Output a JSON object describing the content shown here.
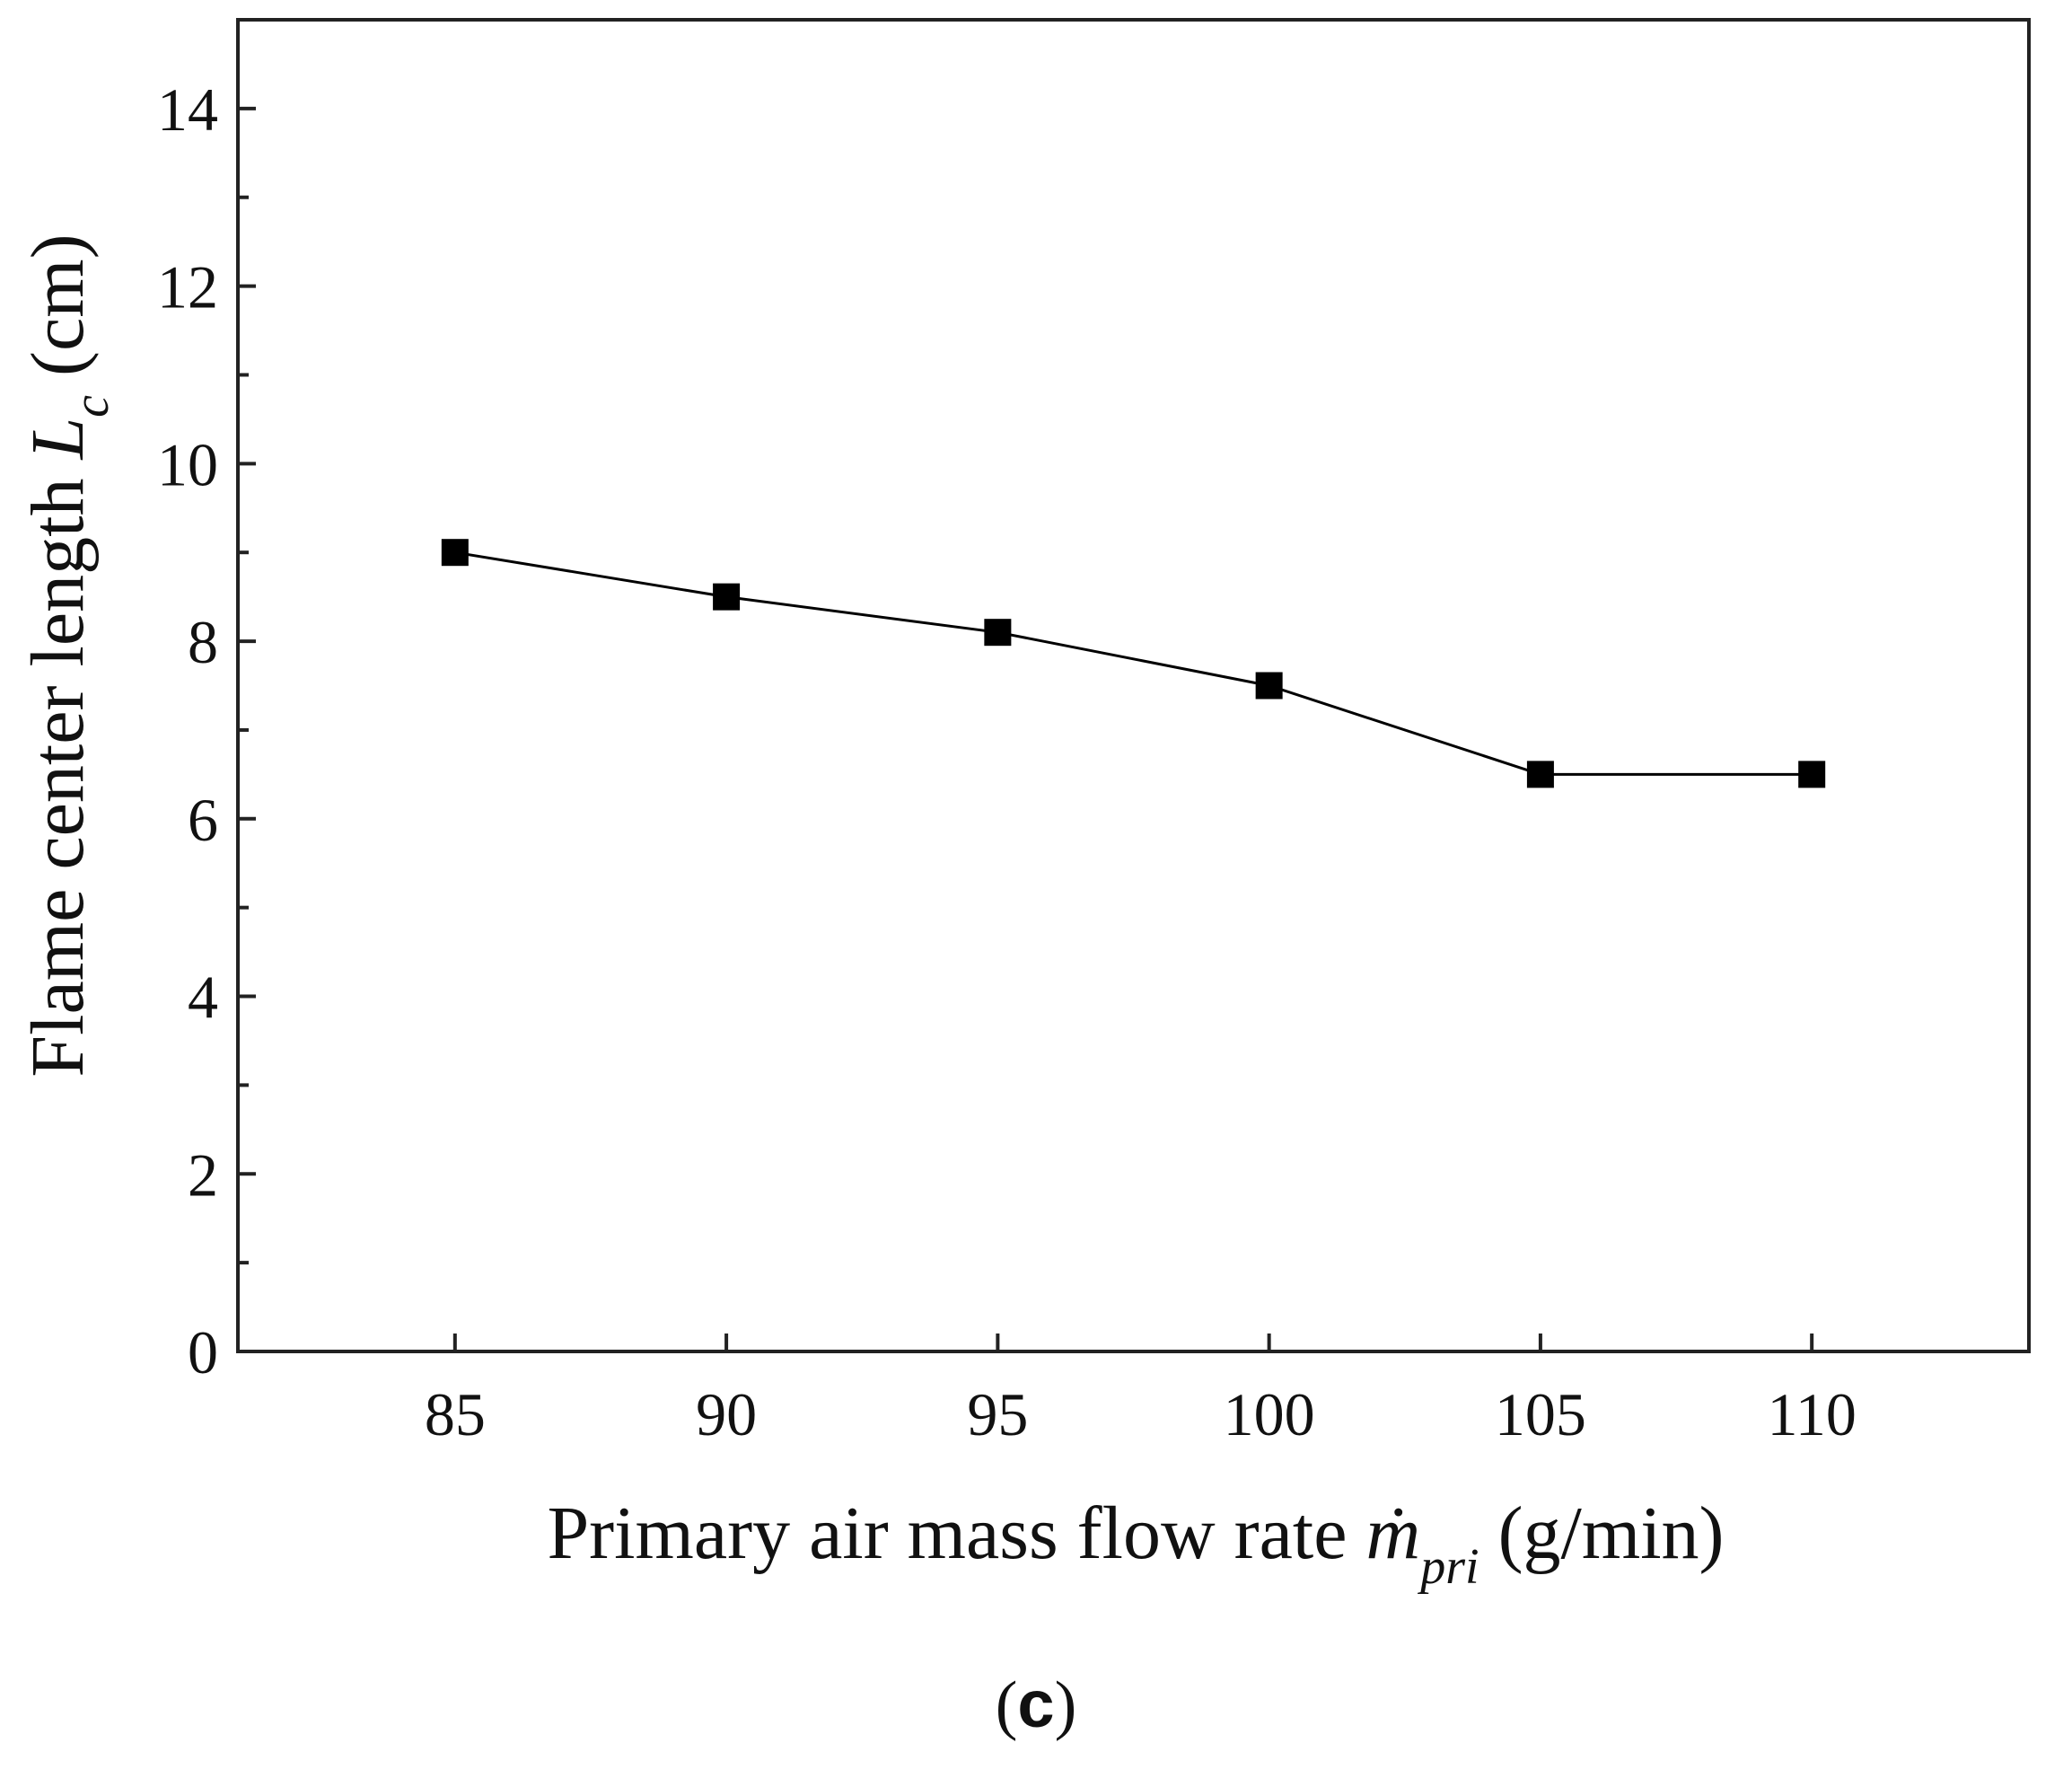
{
  "chart_data": {
    "type": "line",
    "title": "",
    "x": [
      85,
      90,
      95,
      100,
      105,
      110
    ],
    "series": [
      {
        "name": "Flame center length",
        "values": [
          9.0,
          8.5,
          8.1,
          7.5,
          6.5,
          6.5
        ],
        "marker": "square",
        "color": "#000000"
      }
    ],
    "xlim": [
      81,
      114
    ],
    "ylim": [
      0,
      15
    ],
    "x_ticks": [
      85,
      90,
      95,
      100,
      105,
      110
    ],
    "y_ticks": [
      0,
      2,
      4,
      6,
      8,
      10,
      12,
      14
    ],
    "y_minor_ticks": [
      1,
      3,
      5,
      7,
      9,
      11,
      13
    ],
    "xlabel": {
      "prefix": "Primary air mass flow rate ",
      "symbol": "ṁ",
      "subscript": "pri",
      "suffix": " (g/min)"
    },
    "ylabel": {
      "prefix": "Flame center length ",
      "symbol": "L",
      "subscript": "c",
      "suffix": " (cm)"
    },
    "grid": false,
    "legend": "none"
  },
  "panel_label": {
    "open": "(",
    "letter": "c",
    "close": ")"
  }
}
